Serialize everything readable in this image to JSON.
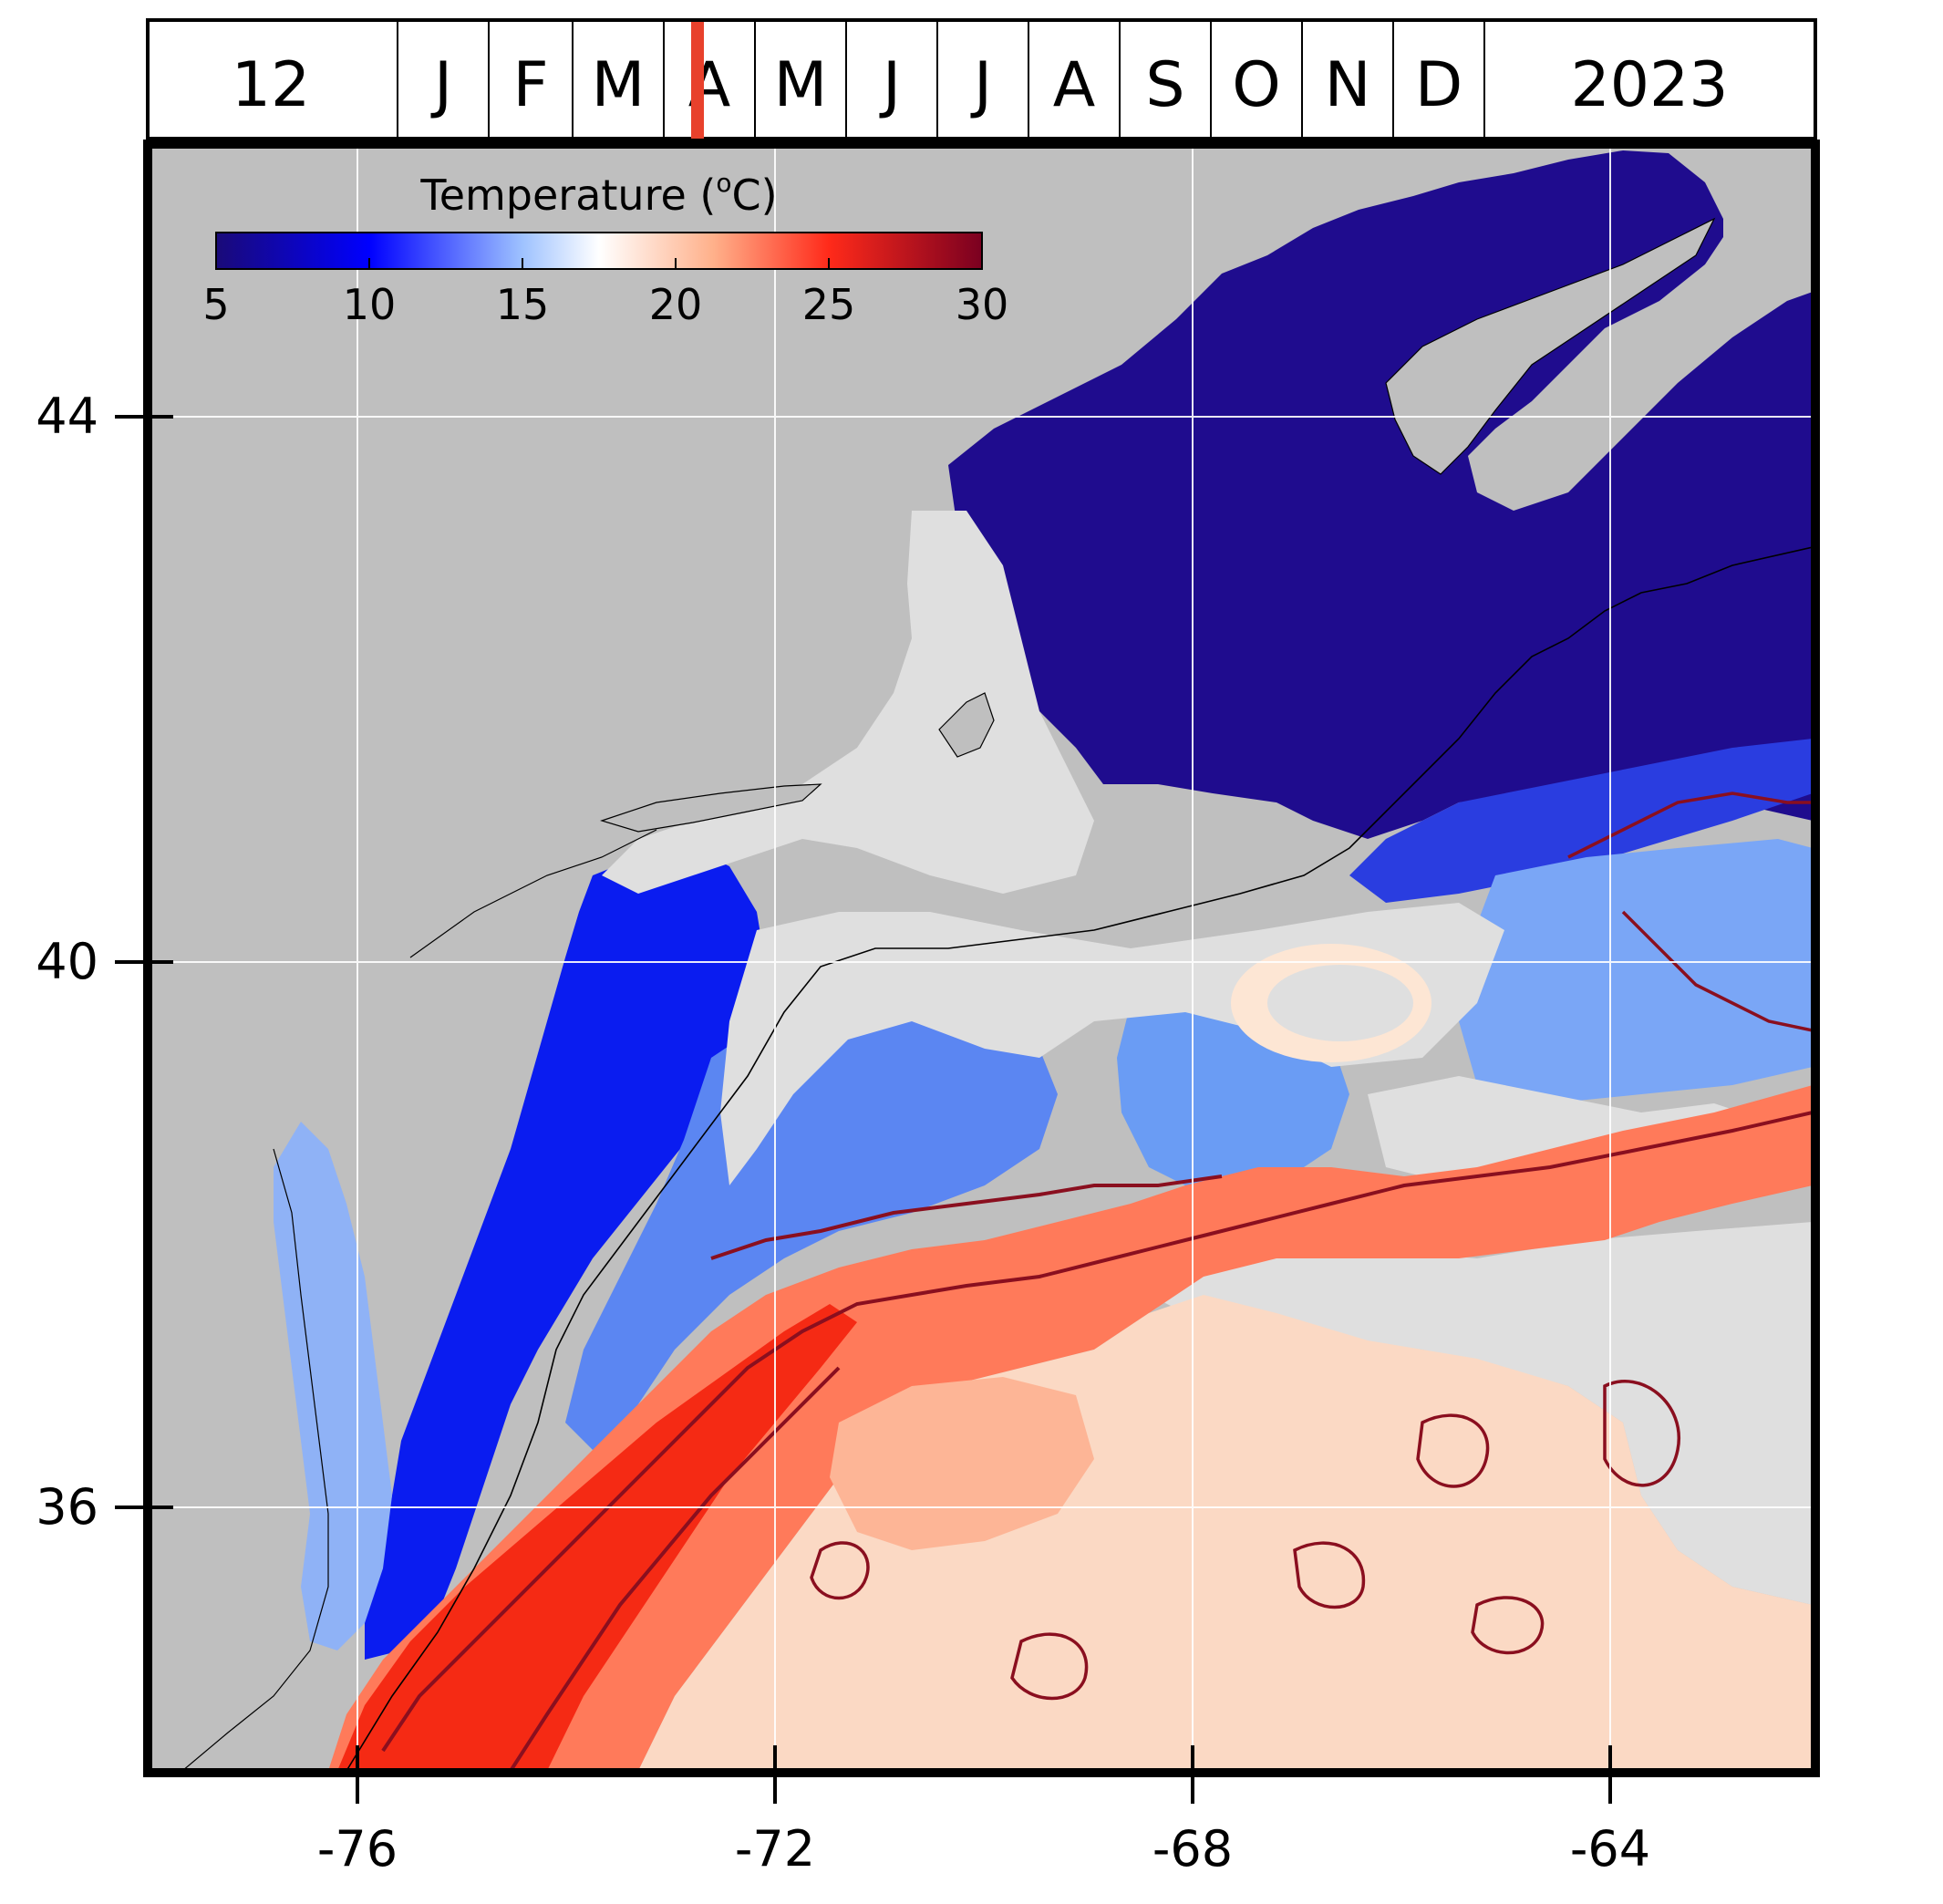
{
  "timeline": {
    "day": "12",
    "months": [
      "J",
      "F",
      "M",
      "A",
      "M",
      "J",
      "J",
      "A",
      "S",
      "O",
      "N",
      "D"
    ],
    "year": "2023",
    "current_month_index": 3,
    "marker_fraction_of_month": 0.37,
    "marker_color": "#e8412c"
  },
  "colorbar": {
    "title": "Temperature (",
    "title_superscript": "o",
    "title_suffix": "C)",
    "tick_labels": [
      "5",
      "10",
      "15",
      "20",
      "25",
      "30"
    ],
    "range": [
      5,
      30
    ],
    "colormap": [
      "#1a0a78",
      "#0000ff",
      "#ffffff",
      "#ff0000",
      "#7a0020"
    ]
  },
  "axes": {
    "y_ticks": [
      "44",
      "40",
      "36"
    ],
    "x_ticks": [
      "-76",
      "-72",
      "-68",
      "-64"
    ]
  },
  "colors": {
    "land": "#bfbfbf",
    "no_data": "#dfdfdf",
    "contour": "#8a0f1f",
    "grid": "#ffffff"
  }
}
